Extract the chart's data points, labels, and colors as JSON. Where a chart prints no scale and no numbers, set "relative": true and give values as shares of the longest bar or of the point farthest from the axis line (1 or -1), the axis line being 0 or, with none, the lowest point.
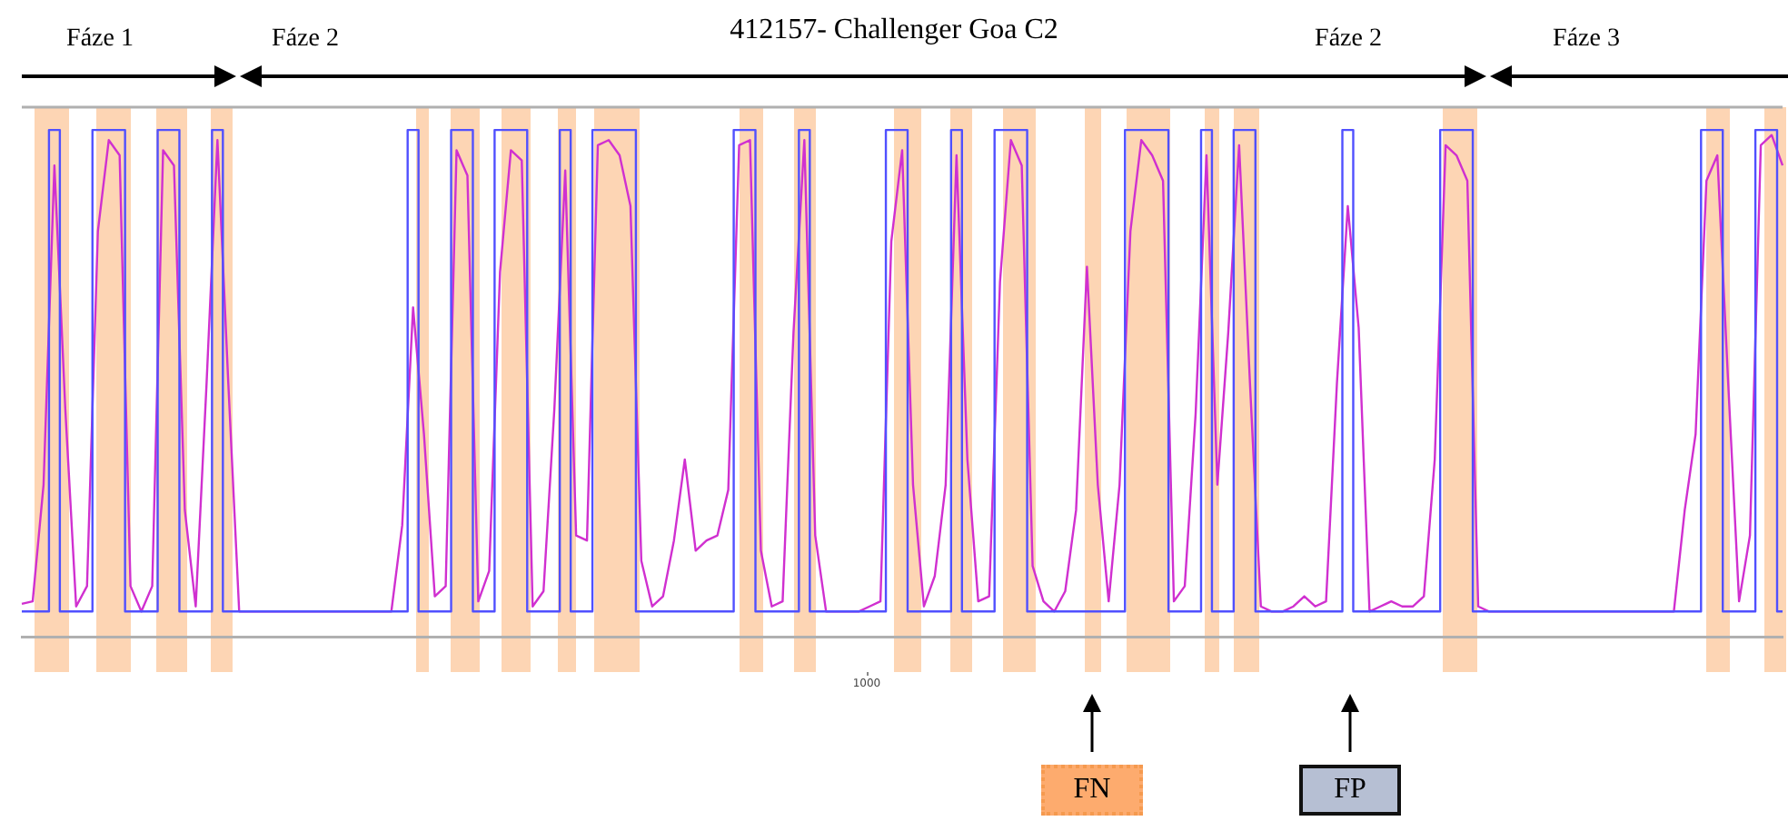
{
  "chart_data": {
    "type": "line",
    "title": "412157- Challenger Goa C2",
    "relative": true,
    "marker": "none",
    "categories": [
      null,
      null,
      null,
      null,
      null,
      null,
      null,
      null,
      null,
      null,
      null,
      null,
      null,
      null,
      null,
      null,
      null,
      null,
      null,
      null,
      null,
      null,
      null,
      null,
      null,
      null,
      null,
      null,
      null,
      null,
      null,
      null,
      null,
      null,
      null,
      null,
      null,
      null,
      null,
      null,
      null,
      null,
      null,
      null,
      null,
      null,
      null,
      null,
      null,
      null,
      null,
      null,
      null,
      null,
      null,
      null,
      null,
      null,
      null,
      null,
      null,
      null,
      null,
      null,
      null,
      null,
      null,
      null,
      null,
      null,
      null,
      null,
      null,
      null,
      null,
      null,
      null,
      null,
      null,
      null,
      null,
      null,
      null,
      null,
      null,
      null,
      null,
      null,
      null,
      null,
      null,
      null,
      null,
      null,
      null,
      null,
      null,
      null,
      null,
      null,
      null,
      null,
      null,
      null,
      null,
      null,
      null,
      null,
      null,
      null,
      null,
      null,
      null,
      null,
      null,
      null,
      null,
      null,
      null,
      null,
      null,
      null,
      null,
      null,
      null,
      null,
      null,
      null,
      null,
      null,
      null,
      null,
      null,
      null,
      null,
      null,
      null,
      null,
      null,
      null,
      null,
      null,
      null,
      null,
      null,
      null,
      null,
      null,
      null,
      null,
      null,
      null,
      null,
      null,
      null,
      null,
      null,
      null,
      null,
      null,
      null,
      null,
      null
    ],
    "series": [
      {
        "type": "step",
        "color": "#5050ff",
        "values": [
          0.05,
          0.05,
          0.05,
          1,
          0.05,
          0.05,
          0.05,
          1,
          1,
          1,
          0.05,
          0.05,
          0.05,
          1,
          1,
          0.05,
          0.05,
          0.05,
          1,
          0.05,
          0.05,
          0.05,
          0.05,
          0.05,
          0.05,
          0.05,
          0.05,
          0.05,
          0.05,
          0.05,
          0.05,
          0.05,
          0.05,
          0.05,
          0.05,
          0.05,
          1,
          0.05,
          0.05,
          0.05,
          1,
          1,
          0.05,
          0.05,
          1,
          1,
          1,
          0.05,
          0.05,
          0.05,
          1,
          0.05,
          0.05,
          1,
          1,
          1,
          1,
          0.05,
          0.05,
          0.05,
          0.05,
          0.05,
          0.05,
          0.05,
          0.05,
          0.05,
          1,
          1,
          0.05,
          0.05,
          0.05,
          0.05,
          1,
          0.05,
          0.05,
          0.05,
          0.05,
          0.05,
          0.05,
          0.05,
          1,
          1,
          0.05,
          0.05,
          0.05,
          0.05,
          1,
          0.05,
          0.05,
          0.05,
          1,
          1,
          1,
          0.05,
          0.05,
          0.05,
          0.05,
          0.05,
          0.05,
          0.05,
          0.05,
          0.05,
          1,
          1,
          1,
          1,
          0.05,
          0.05,
          0.05,
          1,
          0.05,
          0.05,
          1,
          1,
          0.05,
          0.05,
          0.05,
          0.05,
          0.05,
          0.05,
          0.05,
          0.05,
          1,
          0.05,
          0.05,
          0.05,
          0.05,
          0.05,
          0.05,
          0.05,
          0.05,
          1,
          1,
          1,
          0.05,
          0.05,
          0.05,
          0.05,
          0.05,
          0.05,
          0.05,
          0.05,
          0.05,
          0.05,
          0.05,
          0.05,
          0.05,
          0.05,
          0.05,
          0.05,
          0.05,
          0.05,
          0.05,
          0.05,
          0.05,
          1,
          1,
          0.05,
          0.05,
          0.05,
          1,
          1,
          0.05
        ]
      },
      {
        "color": "#d030d0",
        "values": [
          0.065,
          0.07,
          0.3,
          0.93,
          0.45,
          0.06,
          0.1,
          0.8,
          0.98,
          0.95,
          0.1,
          0.05,
          0.1,
          0.96,
          0.93,
          0.25,
          0.06,
          0.5,
          0.98,
          0.5,
          0.05,
          0.05,
          0.05,
          0.05,
          0.05,
          0.05,
          0.05,
          0.05,
          0.05,
          0.05,
          0.05,
          0.05,
          0.05,
          0.05,
          0.05,
          0.22,
          0.65,
          0.4,
          0.08,
          0.1,
          0.96,
          0.91,
          0.07,
          0.13,
          0.72,
          0.96,
          0.94,
          0.06,
          0.09,
          0.45,
          0.92,
          0.2,
          0.19,
          0.97,
          0.98,
          0.95,
          0.85,
          0.15,
          0.06,
          0.08,
          0.19,
          0.35,
          0.17,
          0.19,
          0.2,
          0.29,
          0.97,
          0.98,
          0.17,
          0.06,
          0.07,
          0.6,
          0.98,
          0.2,
          0.05,
          0.05,
          0.05,
          0.05,
          0.06,
          0.07,
          0.78,
          0.96,
          0.3,
          0.06,
          0.12,
          0.3,
          0.95,
          0.35,
          0.07,
          0.08,
          0.7,
          0.98,
          0.93,
          0.14,
          0.07,
          0.05,
          0.09,
          0.25,
          0.73,
          0.3,
          0.07,
          0.3,
          0.8,
          0.98,
          0.95,
          0.9,
          0.07,
          0.1,
          0.44,
          0.95,
          0.3,
          0.6,
          0.97,
          0.5,
          0.06,
          0.05,
          0.05,
          0.06,
          0.08,
          0.06,
          0.07,
          0.5,
          0.85,
          0.61,
          0.05,
          0.06,
          0.07,
          0.06,
          0.06,
          0.08,
          0.35,
          0.97,
          0.95,
          0.9,
          0.06,
          0.05,
          0.05,
          0.05,
          0.05,
          0.05,
          0.05,
          0.05,
          0.05,
          0.05,
          0.05,
          0.05,
          0.05,
          0.05,
          0.05,
          0.05,
          0.05,
          0.05,
          0.05,
          0.25,
          0.4,
          0.9,
          0.95,
          0.5,
          0.07,
          0.2,
          0.97,
          0.99,
          0.93
        ]
      }
    ],
    "annotations": [
      "1000",
      "Fáze 1",
      "Fáze 2",
      "Fáze 2",
      "Fáze 3",
      "FN",
      "FP"
    ]
  }
}
